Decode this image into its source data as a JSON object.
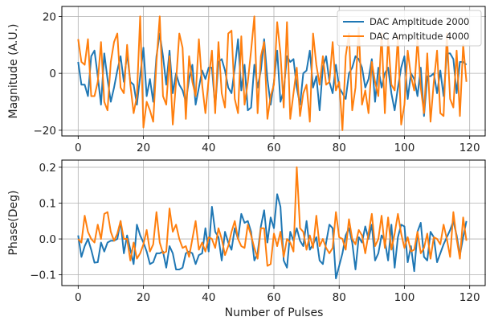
{
  "chart_data": [
    {
      "type": "line",
      "title": "",
      "xlabel": "",
      "ylabel": "Magnitude (A.U.)",
      "xlim": [
        -5,
        125
      ],
      "ylim": [
        -22,
        23.5
      ],
      "xticks": [
        0,
        20,
        40,
        60,
        80,
        100,
        120
      ],
      "yticks": [
        -20,
        0,
        20
      ],
      "ytick_labels": [
        "−20",
        "0",
        "20"
      ],
      "grid": true,
      "legend_position": "top-right",
      "series": [
        {
          "name": "DAC Ampltitude 2000",
          "color": "#1f77b4",
          "x": [
            0,
            1,
            2,
            3,
            4,
            5,
            6,
            7,
            8,
            9,
            10,
            11,
            12,
            13,
            14,
            15,
            16,
            17,
            18,
            19,
            20,
            21,
            22,
            23,
            24,
            25,
            26,
            27,
            28,
            29,
            30,
            31,
            32,
            33,
            34,
            35,
            36,
            37,
            38,
            39,
            40,
            41,
            42,
            43,
            44,
            45,
            46,
            47,
            48,
            49,
            50,
            51,
            52,
            53,
            54,
            55,
            56,
            57,
            58,
            59,
            60,
            61,
            62,
            63,
            64,
            65,
            66,
            67,
            68,
            69,
            70,
            71,
            72,
            73,
            74,
            75,
            76,
            77,
            78,
            79,
            80,
            81,
            82,
            83,
            84,
            85,
            86,
            87,
            88,
            89,
            90,
            91,
            92,
            93,
            94,
            95,
            96,
            97,
            98,
            99,
            100,
            101,
            102,
            103,
            104,
            105,
            106,
            107,
            108,
            109,
            110,
            111,
            112,
            113,
            114,
            115,
            116,
            117,
            118,
            119
          ],
          "y": [
            4,
            -4,
            -4,
            -8,
            6,
            8,
            -1,
            -11,
            7,
            -2,
            -10,
            -5,
            1,
            6,
            -3,
            7,
            -3,
            -4,
            -11,
            -1,
            9,
            -8,
            -2,
            -10,
            6,
            14,
            6,
            -4,
            8,
            -7,
            0,
            -4,
            -6,
            -10,
            -2,
            3,
            -11,
            -5,
            1,
            -2,
            2,
            2,
            -12,
            4,
            5,
            1,
            -5,
            -7,
            2,
            12,
            -6,
            3,
            -13,
            -12,
            3,
            -5,
            1,
            12,
            -2,
            -11,
            -3,
            8,
            -10,
            -6,
            6,
            4,
            5,
            -5,
            -11,
            0,
            1,
            8,
            -5,
            -1,
            -13,
            2,
            6,
            -3,
            -7,
            3,
            -5,
            -7,
            -9,
            0,
            2,
            6,
            5,
            2,
            -5,
            -2,
            5,
            -10,
            2,
            -5,
            0,
            2,
            -7,
            -13,
            -5,
            2,
            6,
            -9,
            0,
            -2,
            -8,
            2,
            -15,
            -1,
            -1,
            0,
            -7,
            1,
            -8,
            7,
            7,
            5,
            -7,
            4,
            4,
            3
          ]
        },
        {
          "name": "DAC Ampltitude 4000",
          "color": "#ff7f0e",
          "x": [
            0,
            1,
            2,
            3,
            4,
            5,
            6,
            7,
            8,
            9,
            10,
            11,
            12,
            13,
            14,
            15,
            16,
            17,
            18,
            19,
            20,
            21,
            22,
            23,
            24,
            25,
            26,
            27,
            28,
            29,
            30,
            31,
            32,
            33,
            34,
            35,
            36,
            37,
            38,
            39,
            40,
            41,
            42,
            43,
            44,
            45,
            46,
            47,
            48,
            49,
            50,
            51,
            52,
            53,
            54,
            55,
            56,
            57,
            58,
            59,
            60,
            61,
            62,
            63,
            64,
            65,
            66,
            67,
            68,
            69,
            70,
            71,
            72,
            73,
            74,
            75,
            76,
            77,
            78,
            79,
            80,
            81,
            82,
            83,
            84,
            85,
            86,
            87,
            88,
            89,
            90,
            91,
            92,
            93,
            94,
            95,
            96,
            97,
            98,
            99,
            100,
            101,
            102,
            103,
            104,
            105,
            106,
            107,
            108,
            109,
            110,
            111,
            112,
            113,
            114,
            115,
            116,
            117,
            118,
            119
          ],
          "y": [
            12,
            4,
            3,
            12,
            -8,
            -8,
            -3,
            11,
            -10,
            -13,
            4,
            11,
            14,
            -5,
            -7,
            10,
            -4,
            -14,
            -8,
            20,
            -19,
            -10,
            -13,
            -17,
            4,
            20,
            -8,
            -11,
            6,
            -18,
            -3,
            14,
            9,
            -16,
            6,
            -3,
            -8,
            12,
            -4,
            -14,
            -2,
            8,
            -14,
            11,
            -7,
            -12,
            14,
            15,
            -9,
            -14,
            13,
            -11,
            -3,
            8,
            20,
            -14,
            6,
            11,
            -16,
            -8,
            -4,
            18,
            7,
            -12,
            18,
            -16,
            -7,
            2,
            -15,
            -7,
            -4,
            -17,
            14,
            3,
            -4,
            6,
            -4,
            -3,
            11,
            -6,
            -3,
            -20,
            6,
            14,
            -13,
            -5,
            16,
            -11,
            -6,
            -14,
            4,
            -3,
            -8,
            14,
            -14,
            12,
            -4,
            -6,
            13,
            -18,
            -11,
            8,
            -1,
            -6,
            12,
            -5,
            -14,
            7,
            -17,
            -3,
            8,
            -14,
            -15,
            14,
            -9,
            -12,
            8,
            -15,
            10,
            -3
          ]
        }
      ]
    },
    {
      "type": "line",
      "title": "",
      "xlabel": "Number of Pulses",
      "ylabel": "Phase(Deg)",
      "xlim": [
        -5,
        125
      ],
      "ylim": [
        -0.13,
        0.22
      ],
      "xticks": [
        0,
        20,
        40,
        60,
        80,
        100,
        120
      ],
      "yticks": [
        -0.1,
        0.0,
        0.1,
        0.2
      ],
      "ytick_labels": [
        "−0.1",
        "0.0",
        "0.1",
        "0.2"
      ],
      "grid": true,
      "series": [
        {
          "name": "DAC Ampltitude 2000",
          "color": "#1f77b4",
          "x": [
            0,
            1,
            2,
            3,
            4,
            5,
            6,
            7,
            8,
            9,
            10,
            11,
            12,
            13,
            14,
            15,
            16,
            17,
            18,
            19,
            20,
            21,
            22,
            23,
            24,
            25,
            26,
            27,
            28,
            29,
            30,
            31,
            32,
            33,
            34,
            35,
            36,
            37,
            38,
            39,
            40,
            41,
            42,
            43,
            44,
            45,
            46,
            47,
            48,
            49,
            50,
            51,
            52,
            53,
            54,
            55,
            56,
            57,
            58,
            59,
            60,
            61,
            62,
            63,
            64,
            65,
            66,
            67,
            68,
            69,
            70,
            71,
            72,
            73,
            74,
            75,
            76,
            77,
            78,
            79,
            80,
            81,
            82,
            83,
            84,
            85,
            86,
            87,
            88,
            89,
            90,
            91,
            92,
            93,
            94,
            95,
            96,
            97,
            98,
            99,
            100,
            101,
            102,
            103,
            104,
            105,
            106,
            107,
            108,
            109,
            110,
            111,
            112,
            113,
            114,
            115,
            116,
            117,
            118,
            119
          ],
          "y": [
            0.01,
            -0.05,
            -0.02,
            0.0,
            -0.03,
            -0.066,
            -0.065,
            -0.01,
            -0.035,
            -0.01,
            -0.005,
            -0.005,
            0.0,
            0.05,
            -0.04,
            0.01,
            -0.03,
            -0.07,
            0.04,
            0.01,
            -0.01,
            -0.035,
            -0.07,
            -0.065,
            -0.04,
            -0.04,
            -0.035,
            -0.08,
            -0.02,
            -0.04,
            -0.085,
            -0.085,
            -0.08,
            -0.04,
            -0.035,
            -0.04,
            -0.07,
            -0.045,
            -0.04,
            0.03,
            -0.035,
            0.09,
            0.02,
            0.005,
            -0.06,
            0.02,
            -0.01,
            -0.03,
            0.03,
            0.0,
            0.07,
            0.045,
            0.05,
            0.02,
            -0.06,
            -0.04,
            0.035,
            0.08,
            -0.01,
            0.06,
            0.03,
            0.125,
            0.09,
            -0.06,
            -0.08,
            0.02,
            -0.005,
            0.03,
            -0.005,
            -0.02,
            0.05,
            -0.03,
            -0.015,
            0.005,
            -0.06,
            -0.07,
            -0.01,
            0.04,
            0.03,
            -0.11,
            -0.075,
            -0.04,
            0.01,
            0.03,
            -0.01,
            -0.085,
            0.005,
            -0.01,
            0.035,
            0.0,
            0.04,
            -0.06,
            -0.04,
            0.01,
            -0.005,
            -0.06,
            0.04,
            -0.08,
            0.005,
            0.04,
            0.035,
            -0.065,
            -0.02,
            -0.09,
            0.02,
            0.045,
            -0.05,
            -0.06,
            0.02,
            0.005,
            -0.065,
            -0.04,
            -0.015,
            0.005,
            0.025,
            0.05,
            0.01,
            -0.045,
            0.005,
            0.05
          ]
        },
        {
          "name": "DAC Ampltitude 4000",
          "color": "#ff7f0e",
          "x": [
            0,
            1,
            2,
            3,
            4,
            5,
            6,
            7,
            8,
            9,
            10,
            11,
            12,
            13,
            14,
            15,
            16,
            17,
            18,
            19,
            20,
            21,
            22,
            23,
            24,
            25,
            26,
            27,
            28,
            29,
            30,
            31,
            32,
            33,
            34,
            35,
            36,
            37,
            38,
            39,
            40,
            41,
            42,
            43,
            44,
            45,
            46,
            47,
            48,
            49,
            50,
            51,
            52,
            53,
            54,
            55,
            56,
            57,
            58,
            59,
            60,
            61,
            62,
            63,
            64,
            65,
            66,
            67,
            68,
            69,
            70,
            71,
            72,
            73,
            74,
            75,
            76,
            77,
            78,
            79,
            80,
            81,
            82,
            83,
            84,
            85,
            86,
            87,
            88,
            89,
            90,
            91,
            92,
            93,
            94,
            95,
            96,
            97,
            98,
            99,
            100,
            101,
            102,
            103,
            104,
            105,
            106,
            107,
            108,
            109,
            110,
            111,
            112,
            113,
            114,
            115,
            116,
            117,
            118,
            119
          ],
          "y": [
            0.0,
            -0.01,
            0.065,
            0.02,
            0.0,
            -0.01,
            0.04,
            0.0,
            0.07,
            0.075,
            0.02,
            -0.005,
            0.015,
            0.05,
            0.0,
            0.0,
            -0.06,
            -0.01,
            -0.055,
            -0.04,
            -0.015,
            0.025,
            -0.035,
            -0.015,
            0.075,
            -0.01,
            -0.04,
            -0.035,
            0.085,
            0.02,
            0.04,
            0.0,
            -0.025,
            -0.02,
            -0.05,
            0.0,
            0.05,
            -0.03,
            -0.01,
            -0.035,
            0.005,
            0.0,
            -0.025,
            0.03,
            0.0,
            -0.045,
            -0.02,
            0.02,
            0.05,
            0.0,
            -0.02,
            -0.025,
            0.04,
            0.01,
            -0.025,
            -0.055,
            0.03,
            0.03,
            -0.075,
            -0.07,
            0.015,
            -0.02,
            0.02,
            -0.05,
            0.0,
            -0.01,
            -0.035,
            0.2,
            0.03,
            0.02,
            -0.03,
            0.01,
            -0.025,
            0.065,
            -0.02,
            0.0,
            -0.025,
            -0.04,
            -0.025,
            0.075,
            0.005,
            0.0,
            -0.03,
            0.055,
            0.0,
            -0.015,
            0.025,
            0.01,
            -0.04,
            0.015,
            0.07,
            -0.02,
            0.0,
            0.065,
            -0.025,
            0.06,
            -0.03,
            0.015,
            0.07,
            0.015,
            -0.025,
            0.005,
            -0.035,
            -0.03,
            0.02,
            -0.04,
            -0.025,
            0.015,
            -0.055,
            0.005,
            0.0,
            -0.015,
            0.04,
            0.0,
            -0.05,
            0.075,
            0.0,
            -0.055,
            0.06,
            -0.005
          ]
        }
      ]
    }
  ]
}
